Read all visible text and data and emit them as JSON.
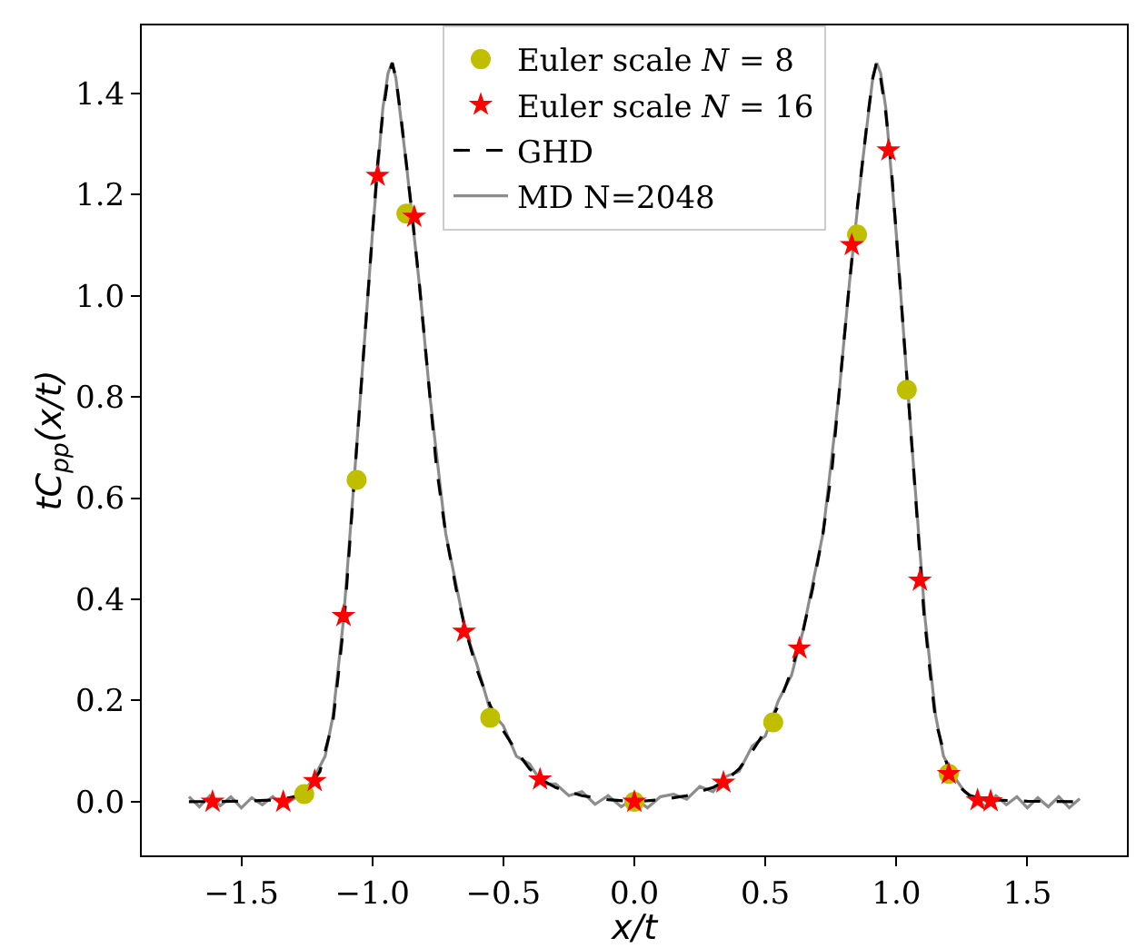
{
  "chart_data": {
    "type": "line",
    "xlabel": "x/t",
    "ylabel": "tC$_{pp}$(x/t)",
    "xlim": [
      -1.88,
      1.88
    ],
    "xticks": [
      {
        "value": -1.5,
        "label": "−1.5"
      },
      {
        "value": -1.0,
        "label": "−1.0"
      },
      {
        "value": -0.5,
        "label": "−0.5"
      },
      {
        "value": 0,
        "label": "0.0"
      },
      {
        "value": 0.5,
        "label": "0.5"
      },
      {
        "value": 1.0,
        "label": "1.0"
      },
      {
        "value": 1.5,
        "label": "1.5"
      }
    ],
    "ylim": [
      -0.106,
      1.534
    ],
    "yticks": [
      {
        "value": 0,
        "label": "0.0"
      },
      {
        "value": 0.2,
        "label": "0.2"
      },
      {
        "value": 0.4,
        "label": "0.4"
      },
      {
        "value": 0.6,
        "label": "0.6"
      },
      {
        "value": 0.8,
        "label": "0.8"
      },
      {
        "value": 1.0,
        "label": "1.0"
      },
      {
        "value": 1.2,
        "label": "1.2"
      },
      {
        "value": 1.4,
        "label": "1.4"
      }
    ],
    "grid": false,
    "legend": "top",
    "series": [
      {
        "name": "MD N=2048",
        "color": "#8c8c8c",
        "line_style": "solid",
        "marker": "none",
        "x": [
          -1.7,
          -1.66,
          -1.62,
          -1.58,
          -1.54,
          -1.5,
          -1.46,
          -1.42,
          -1.38,
          -1.34,
          -1.3,
          -1.26,
          -1.22,
          -1.18,
          -1.15,
          -1.11,
          -1.066,
          -1.04,
          -1.0,
          -0.96,
          -0.94,
          -0.925,
          -0.91,
          -0.87,
          -0.82,
          -0.78,
          -0.72,
          -0.645,
          -0.6,
          -0.55,
          -0.5,
          -0.45,
          -0.4,
          -0.35,
          -0.3,
          -0.25,
          -0.2,
          -0.15,
          -0.1,
          -0.05,
          0,
          0.05,
          0.1,
          0.15,
          0.2,
          0.25,
          0.3,
          0.35,
          0.4,
          0.45,
          0.5,
          0.55,
          0.6,
          0.645,
          0.72,
          0.78,
          0.82,
          0.87,
          0.91,
          0.925,
          0.94,
          0.96,
          1.0,
          1.04,
          1.066,
          1.11,
          1.15,
          1.18,
          1.22,
          1.26,
          1.3,
          1.34,
          1.38,
          1.42,
          1.46,
          1.5,
          1.54,
          1.58,
          1.62,
          1.66,
          1.7
        ],
        "values": [
          0.01,
          -0.01,
          0.012,
          -0.008,
          0.01,
          -0.012,
          0.008,
          -0.006,
          0.01,
          -0.008,
          0.006,
          0.02,
          0.05,
          0.09,
          0.17,
          0.36,
          0.66,
          0.84,
          1.12,
          1.37,
          1.44,
          1.46,
          1.43,
          1.26,
          1.02,
          0.8,
          0.53,
          0.34,
          0.27,
          0.18,
          0.15,
          0.09,
          0.075,
          0.035,
          0.035,
          0.012,
          0.02,
          -0.005,
          0.012,
          -0.01,
          0.008,
          -0.012,
          0.01,
          0.015,
          0.005,
          0.03,
          0.02,
          0.05,
          0.06,
          0.11,
          0.13,
          0.2,
          0.25,
          0.34,
          0.53,
          0.8,
          1.02,
          1.26,
          1.43,
          1.46,
          1.44,
          1.37,
          1.12,
          0.84,
          0.66,
          0.36,
          0.17,
          0.09,
          0.05,
          0.02,
          0.008,
          -0.01,
          0.012,
          -0.006,
          0.01,
          -0.012,
          0.008,
          -0.01,
          0.01,
          -0.012,
          0.006
        ]
      },
      {
        "name": "GHD",
        "color": "#000000",
        "line_style": "dashed",
        "marker": "none",
        "x": [
          -1.7,
          -1.5,
          -1.35,
          -1.28,
          -1.24,
          -1.2,
          -1.15,
          -1.13,
          -1.106,
          -1.066,
          -1.04,
          -1.02,
          -1.0,
          -0.98,
          -0.96,
          -0.94,
          -0.924,
          -0.91,
          -0.89,
          -0.87,
          -0.85,
          -0.82,
          -0.8,
          -0.78,
          -0.755,
          -0.72,
          -0.68,
          -0.645,
          -0.6,
          -0.55,
          -0.5,
          -0.45,
          -0.4,
          -0.35,
          -0.3,
          -0.2,
          -0.1,
          0,
          0.1,
          0.2,
          0.3,
          0.35,
          0.4,
          0.45,
          0.5,
          0.55,
          0.6,
          0.645,
          0.68,
          0.72,
          0.755,
          0.78,
          0.8,
          0.82,
          0.85,
          0.87,
          0.89,
          0.91,
          0.924,
          0.94,
          0.96,
          0.98,
          1.0,
          1.02,
          1.04,
          1.066,
          1.106,
          1.13,
          1.15,
          1.2,
          1.24,
          1.28,
          1.35,
          1.5,
          1.7
        ],
        "values": [
          0,
          0.001,
          0.004,
          0.012,
          0.03,
          0.06,
          0.16,
          0.25,
          0.367,
          0.656,
          0.84,
          0.98,
          1.12,
          1.26,
          1.36,
          1.43,
          1.46,
          1.43,
          1.35,
          1.26,
          1.17,
          1.02,
          0.91,
          0.8,
          0.66,
          0.53,
          0.42,
          0.34,
          0.26,
          0.19,
          0.14,
          0.1,
          0.065,
          0.042,
          0.028,
          0.012,
          0.004,
          0,
          0.004,
          0.012,
          0.028,
          0.042,
          0.065,
          0.1,
          0.14,
          0.19,
          0.26,
          0.34,
          0.42,
          0.53,
          0.66,
          0.8,
          0.91,
          1.02,
          1.17,
          1.26,
          1.35,
          1.43,
          1.46,
          1.43,
          1.36,
          1.26,
          1.12,
          0.98,
          0.84,
          0.656,
          0.367,
          0.25,
          0.16,
          0.06,
          0.03,
          0.012,
          0.004,
          0.001,
          0
        ]
      },
      {
        "name": "Euler scale N = 8",
        "type": "scatter",
        "color": "#bfbf00",
        "marker": "circle",
        "x": [
          -1.26,
          -1.06,
          -0.87,
          -0.55,
          0,
          0.53,
          0.85,
          1.04,
          1.2
        ],
        "values": [
          0.015,
          0.636,
          1.162,
          0.166,
          0,
          0.157,
          1.121,
          0.814,
          0.055
        ]
      },
      {
        "name": "Euler scale N = 16",
        "type": "scatter",
        "color": "#ff0000",
        "marker": "star",
        "x": [
          -1.61,
          -1.34,
          -1.22,
          -1.11,
          -0.98,
          -0.84,
          -0.65,
          -0.36,
          0,
          0.34,
          0.63,
          0.83,
          0.97,
          1.09,
          1.2,
          1.31,
          1.36
        ],
        "values": [
          0,
          0,
          0.041,
          0.367,
          1.237,
          1.156,
          0.336,
          0.044,
          0,
          0.038,
          0.303,
          1.1,
          1.287,
          0.437,
          0.055,
          0.003,
          0.001
        ]
      }
    ]
  }
}
